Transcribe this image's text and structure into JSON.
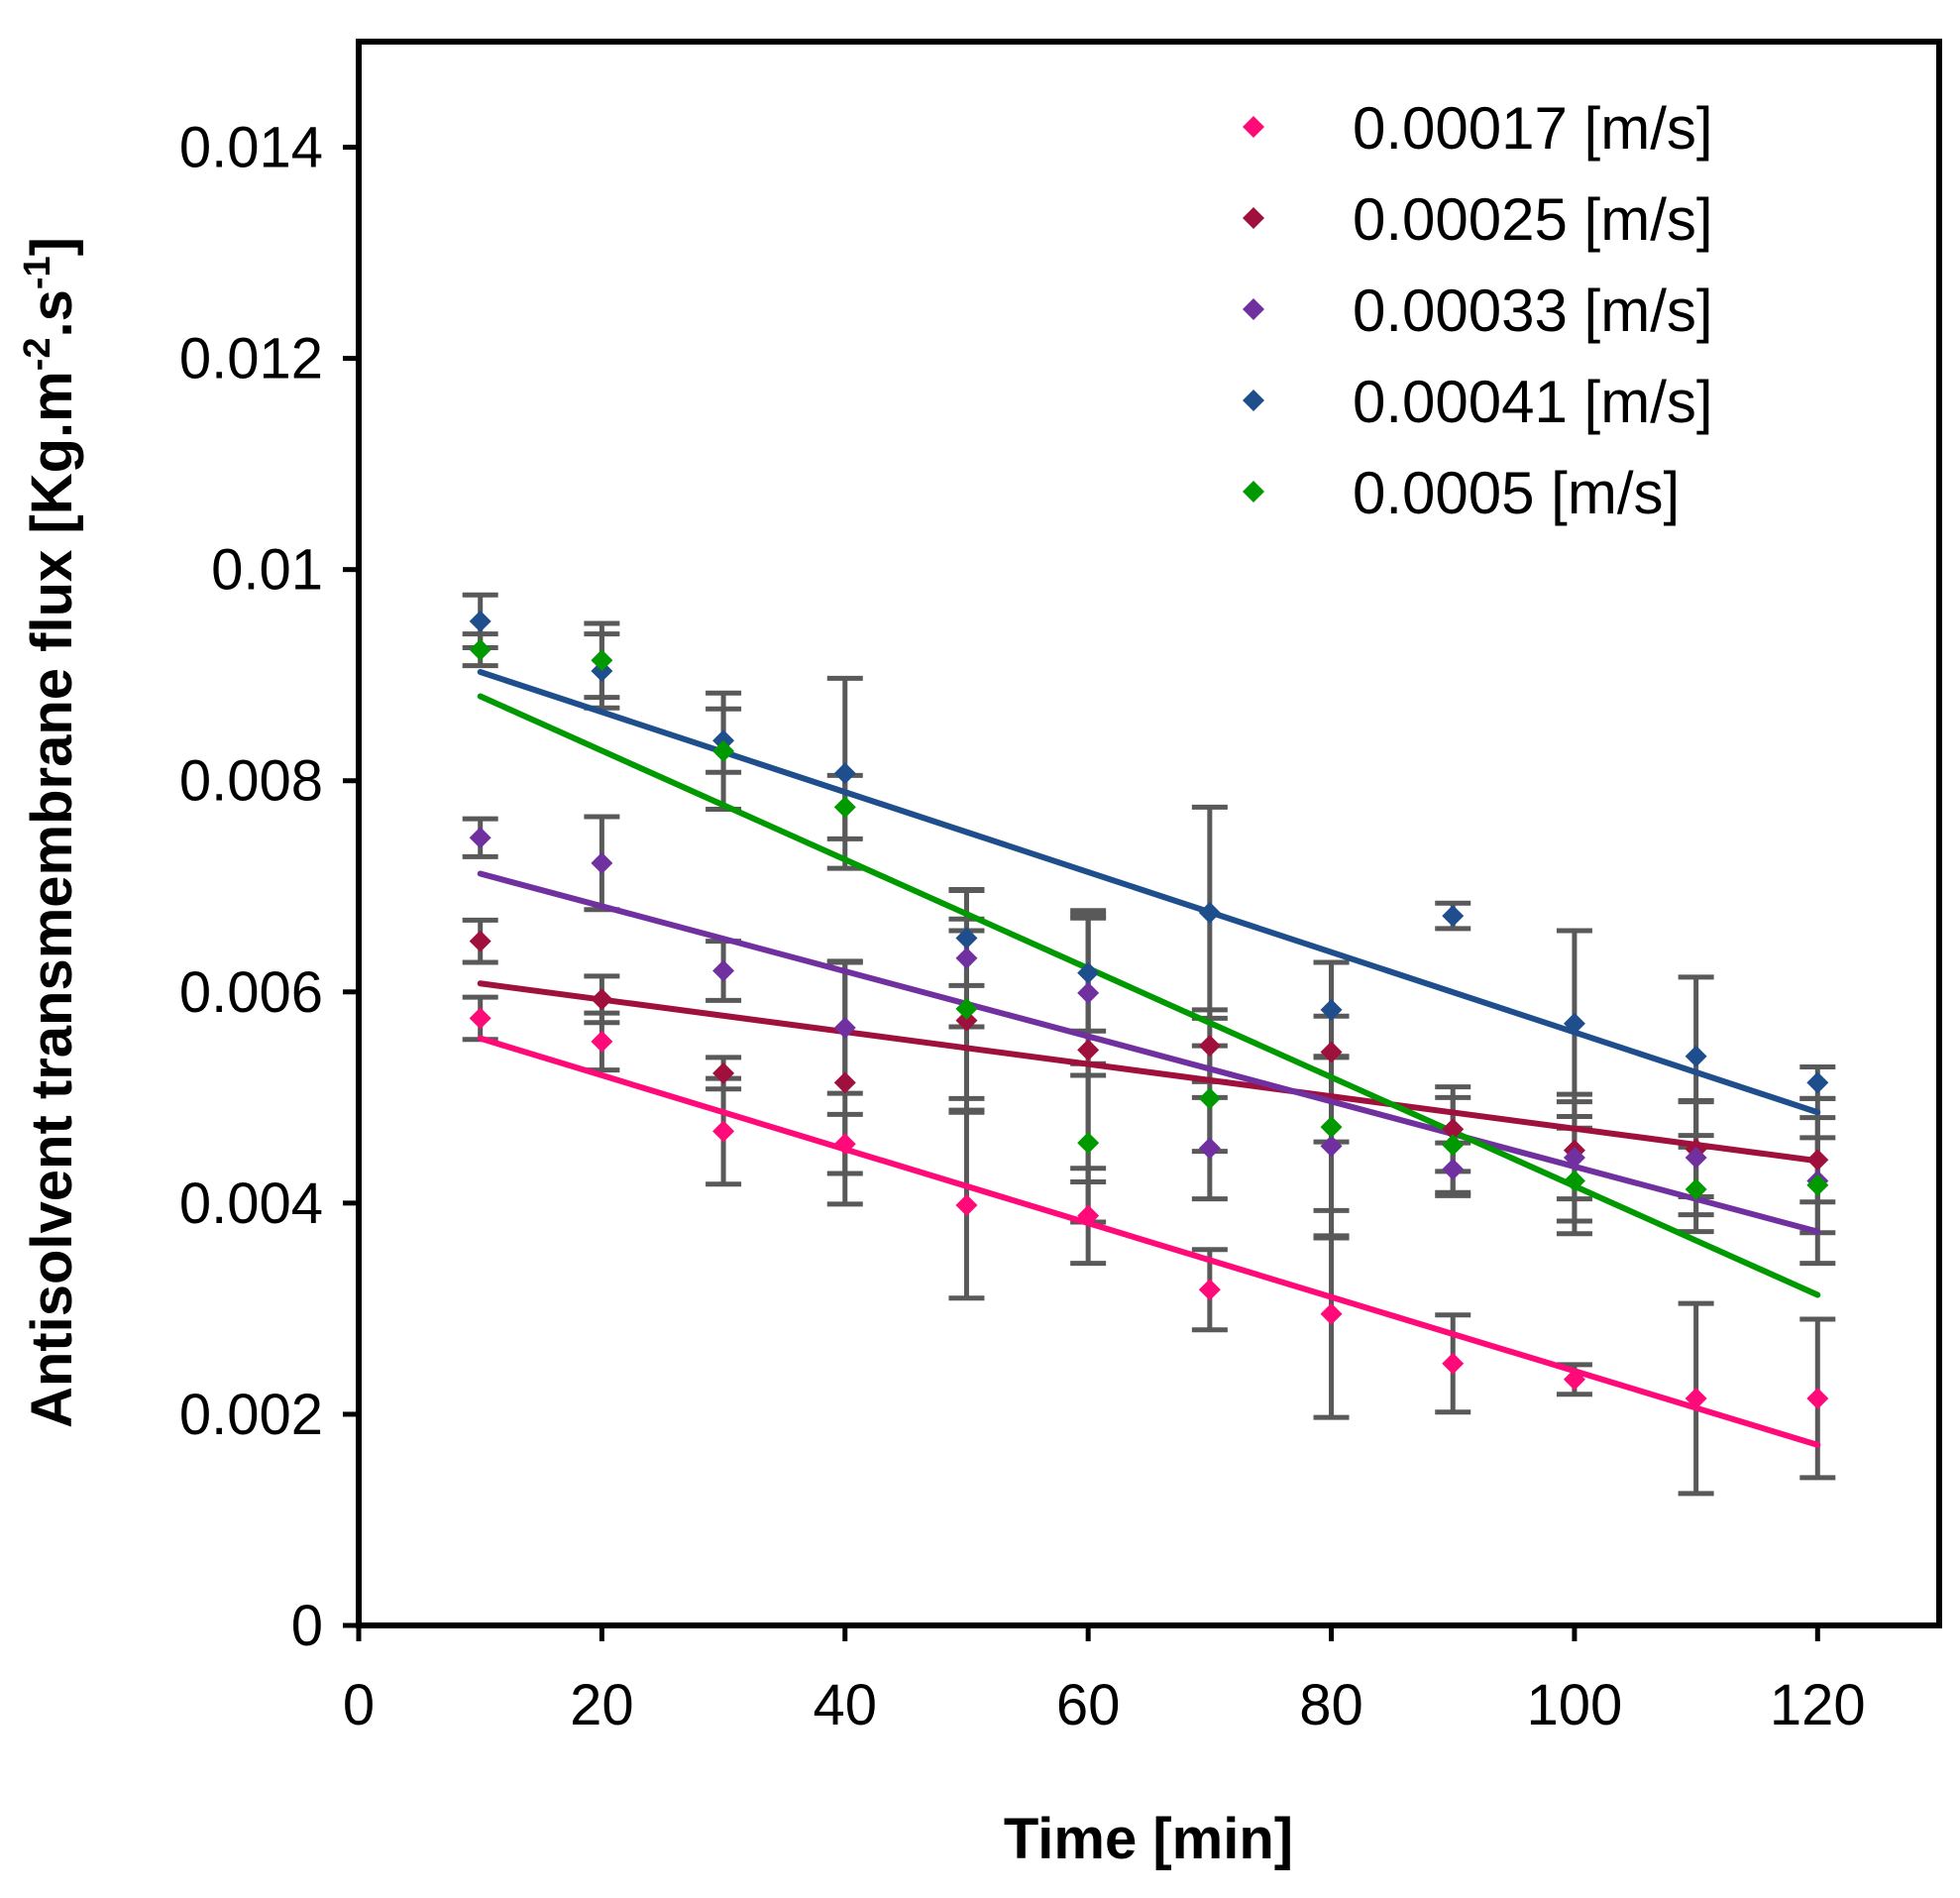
{
  "chart_data": {
    "type": "scatter",
    "title": "",
    "xlabel": "Time [min]",
    "ylabel": {
      "main": "Antisolvent transmembrane flux [Kg.m",
      "sup1": "-2",
      "mid": ".s",
      "sup2": "-1",
      "end": "]"
    },
    "xlim": [
      0,
      130
    ],
    "ylim": [
      0,
      0.015
    ],
    "xticks": [
      0,
      20,
      40,
      60,
      80,
      100,
      120
    ],
    "xtick_labels": [
      "0",
      "20",
      "40",
      "60",
      "80",
      "100",
      "120"
    ],
    "yticks": [
      0,
      0.002,
      0.004,
      0.006,
      0.008,
      0.01,
      0.012,
      0.014
    ],
    "ytick_labels": [
      "0",
      "0.002",
      "0.004",
      "0.006",
      "0.008",
      "0.01",
      "0.012",
      "0.014"
    ],
    "grid": false,
    "legend_position": "top-right",
    "x": [
      10,
      20,
      30,
      40,
      50,
      60,
      70,
      80,
      90,
      100,
      110,
      120
    ],
    "series": [
      {
        "name": "0.00017 [m/s]",
        "color": "#FF0A78",
        "values": [
          0.00575,
          0.00553,
          0.00468,
          0.00456,
          0.00398,
          0.00388,
          0.00318,
          0.00295,
          0.00248,
          0.00233,
          0.00215,
          0.00215
        ],
        "errors": [
          0.0002,
          0.00027,
          0.0005,
          0.00028,
          0.00088,
          0.00045,
          0.00038,
          0.00098,
          0.00046,
          0.00014,
          0.0009,
          0.00075
        ],
        "trend": [
          0.00556,
          0.00171
        ]
      },
      {
        "name": "0.00025 [m/s]",
        "color": "#A0103C",
        "values": [
          0.00648,
          0.00593,
          0.00523,
          0.00514,
          0.00573,
          0.00545,
          0.00549,
          0.00543,
          0.0047,
          0.0045,
          0.00451,
          0.00441
        ],
        "errors": [
          0.0002,
          0.00022,
          0.00015,
          0.00115,
          0.00085,
          0.00125,
          0.00034,
          0.00085,
          0.0004,
          0.00046,
          0.00045,
          0.0004
        ],
        "trend": [
          0.00608,
          0.0044
        ]
      },
      {
        "name": "0.00033 [m/s]",
        "color": "#7030A0",
        "values": [
          0.00746,
          0.00722,
          0.0062,
          0.00566,
          0.00632,
          0.00599,
          0.00452,
          0.00454,
          0.00432,
          0.00443,
          0.00443,
          0.00421
        ],
        "errors": [
          0.00018,
          0.00044,
          0.00028,
          0.00062,
          0.00065,
          0.00078,
          0.00048,
          0.00085,
          0.00025,
          0.0006,
          0.00054,
          0.00078
        ],
        "trend": [
          0.00712,
          0.00373
        ]
      },
      {
        "name": "0.00041 [m/s]",
        "color": "#1F4E8C",
        "values": [
          0.00951,
          0.00904,
          0.00838,
          0.00807,
          0.00651,
          0.00618,
          0.00675,
          0.00583,
          0.00672,
          0.0057,
          0.00539,
          0.00514
        ],
        "errors": [
          0.00025,
          0.00035,
          0.0003,
          0.0009,
          0.00045,
          0.00055,
          0.001,
          0.00045,
          0.00012,
          0.00088,
          0.00075,
          0.00015
        ],
        "trend": [
          0.00903,
          0.00486
        ]
      },
      {
        "name": "0.0005 [m/s]",
        "color": "#009900",
        "values": [
          0.00924,
          0.00914,
          0.00828,
          0.00775,
          0.00584,
          0.00457,
          0.00499,
          0.00472,
          0.00455,
          0.00421,
          0.00413,
          0.00417
        ],
        "errors": [
          0.00015,
          0.00035,
          0.00055,
          0.0003,
          0.00085,
          0.00075,
          0.0005,
          0.00105,
          0.00045,
          0.0005,
          0.0004,
          0.00045
        ],
        "trend": [
          0.0088,
          0.00313
        ]
      }
    ]
  }
}
